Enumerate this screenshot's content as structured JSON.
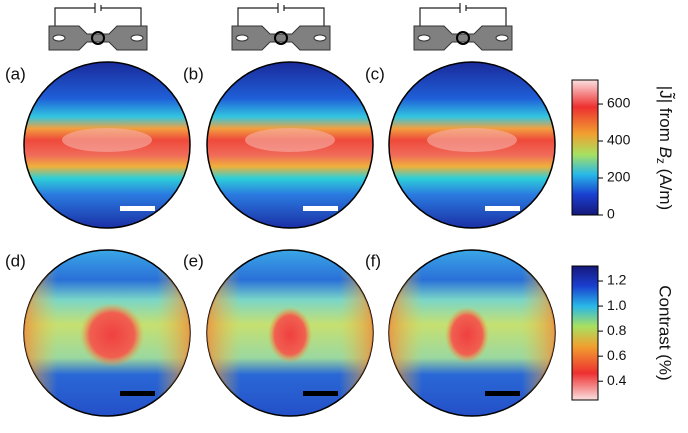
{
  "panels": [
    {
      "label": "(a)"
    },
    {
      "label": "(b)"
    },
    {
      "label": "(c)"
    },
    {
      "label": "(d)"
    },
    {
      "label": "(e)"
    },
    {
      "label": "(f)"
    }
  ],
  "colorbars": [
    {
      "label_prefix": "|J̃| from ",
      "label_var": "B",
      "label_sub": "z",
      "label_suffix": " (A/m)",
      "lim": [
        0,
        730
      ],
      "ticks": [
        0,
        200,
        400,
        600
      ]
    },
    {
      "label": "Contrast (%)",
      "lim": [
        0.25,
        1.32
      ],
      "ticks": [
        {
          "value": 0.4,
          "label": "0.4"
        },
        {
          "value": 0.6,
          "label": "0.6"
        },
        {
          "value": 0.8,
          "label": "0.8"
        },
        {
          "value": 1.0,
          "label": "1.0"
        },
        {
          "value": 1.2,
          "label": "1.2"
        }
      ]
    }
  ]
}
